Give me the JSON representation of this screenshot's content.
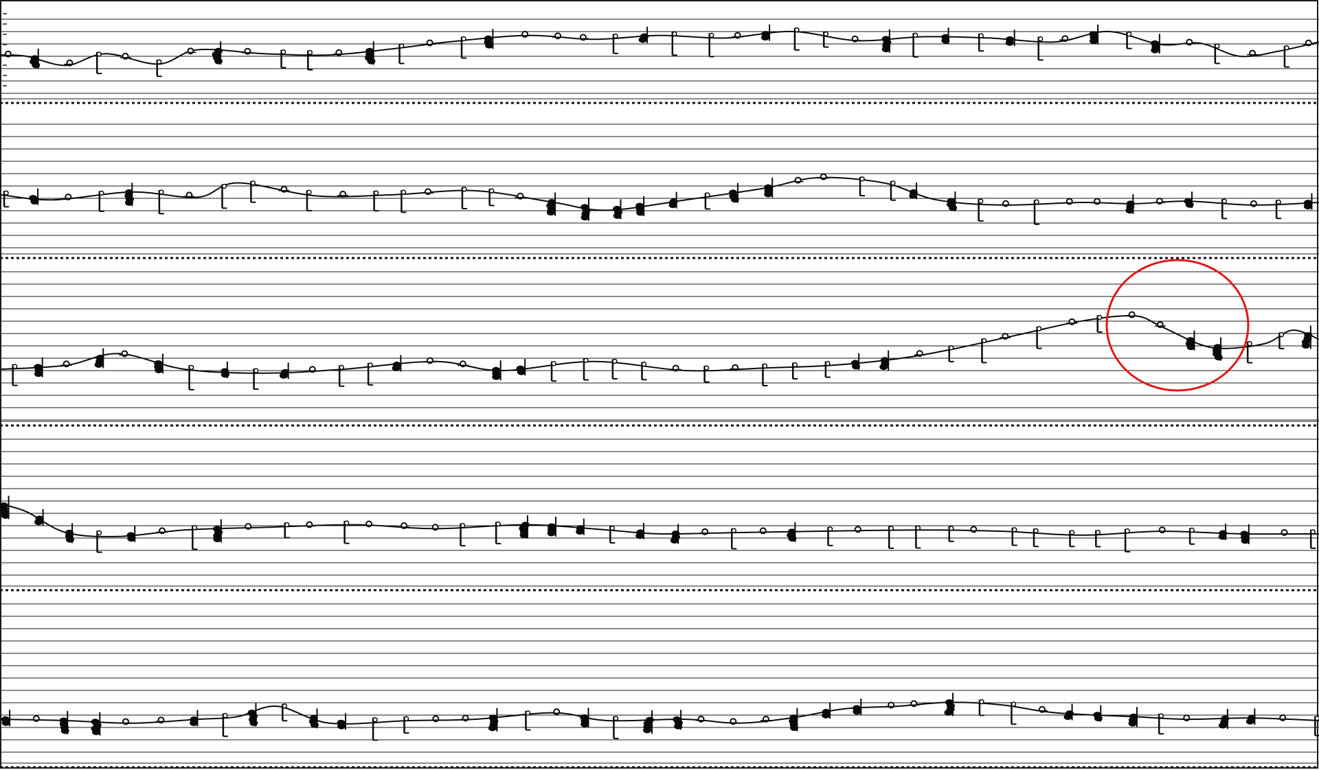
{
  "colors": {
    "background": "#ffffff",
    "staff_line": "#1a1a1a",
    "separator": "#111111",
    "notation": "#0a0a0a",
    "highlight_circle": "#e01818"
  },
  "icons": {
    "highlight": "red-ellipse-annotation",
    "notehead_filled": "filled-notehead-icon",
    "notehead_open": "open-notehead-icon"
  },
  "systems": [
    {
      "name": "system-1",
      "melody": [
        [
          0,
          0.05
        ],
        [
          0.02,
          0.0
        ],
        [
          0.05,
          -0.35
        ],
        [
          0.08,
          0.1
        ],
        [
          0.12,
          -0.3
        ],
        [
          0.15,
          0.25
        ],
        [
          0.2,
          0.1
        ],
        [
          0.25,
          0.05
        ],
        [
          0.3,
          0.3
        ],
        [
          0.34,
          0.55
        ],
        [
          0.4,
          0.8
        ],
        [
          0.45,
          0.65
        ],
        [
          0.5,
          0.8
        ],
        [
          0.55,
          0.7
        ],
        [
          0.6,
          0.95
        ],
        [
          0.65,
          0.6
        ],
        [
          0.7,
          0.75
        ],
        [
          0.75,
          0.7
        ],
        [
          0.8,
          0.55
        ],
        [
          0.84,
          0.95
        ],
        [
          0.88,
          0.45
        ],
        [
          0.91,
          0.5
        ],
        [
          0.94,
          0.0
        ],
        [
          0.97,
          0.2
        ],
        [
          1.0,
          0.55
        ]
      ]
    },
    {
      "name": "system-2",
      "melody": [
        [
          0,
          0.3
        ],
        [
          0.04,
          0.1
        ],
        [
          0.1,
          0.4
        ],
        [
          0.15,
          0.2
        ],
        [
          0.18,
          0.75
        ],
        [
          0.24,
          0.25
        ],
        [
          0.3,
          0.3
        ],
        [
          0.36,
          0.45
        ],
        [
          0.42,
          0.0
        ],
        [
          0.46,
          -0.3
        ],
        [
          0.52,
          0.1
        ],
        [
          0.58,
          0.55
        ],
        [
          0.62,
          0.95
        ],
        [
          0.67,
          0.75
        ],
        [
          0.71,
          0.1
        ],
        [
          0.76,
          -0.1
        ],
        [
          0.82,
          0.0
        ],
        [
          0.86,
          -0.05
        ],
        [
          0.9,
          0.05
        ],
        [
          0.95,
          -0.1
        ],
        [
          1.0,
          0.0
        ]
      ]
    },
    {
      "name": "system-3",
      "melody": [
        [
          0,
          0.05
        ],
        [
          0.05,
          0.2
        ],
        [
          0.09,
          0.65
        ],
        [
          0.14,
          0.05
        ],
        [
          0.2,
          -0.1
        ],
        [
          0.26,
          0.05
        ],
        [
          0.33,
          0.35
        ],
        [
          0.38,
          0.0
        ],
        [
          0.45,
          0.35
        ],
        [
          0.52,
          0.0
        ],
        [
          0.58,
          0.1
        ],
        [
          0.63,
          0.2
        ],
        [
          0.68,
          0.45
        ],
        [
          0.72,
          0.8
        ],
        [
          0.77,
          1.35
        ],
        [
          0.82,
          1.9
        ],
        [
          0.86,
          2.1
        ],
        [
          0.88,
          1.7
        ],
        [
          0.91,
          1.0
        ],
        [
          0.93,
          0.85
        ],
        [
          0.96,
          1.05
        ],
        [
          0.98,
          1.55
        ],
        [
          1.0,
          1.2
        ]
      ]
    },
    {
      "name": "system-4",
      "melody": [
        [
          0,
          1.1
        ],
        [
          0.02,
          0.8
        ],
        [
          0.05,
          0.0
        ],
        [
          0.09,
          -0.15
        ],
        [
          0.14,
          0.1
        ],
        [
          0.2,
          0.2
        ],
        [
          0.27,
          0.3
        ],
        [
          0.33,
          0.15
        ],
        [
          0.4,
          0.3
        ],
        [
          0.46,
          0.1
        ],
        [
          0.5,
          -0.05
        ],
        [
          0.56,
          0.0
        ],
        [
          0.62,
          0.05
        ],
        [
          0.7,
          0.1
        ],
        [
          0.76,
          0.05
        ],
        [
          0.82,
          -0.1
        ],
        [
          0.88,
          0.05
        ],
        [
          0.94,
          -0.05
        ],
        [
          1.0,
          -0.05
        ]
      ]
    },
    {
      "name": "system-5",
      "melody": [
        [
          0,
          0.05
        ],
        [
          0.05,
          0.0
        ],
        [
          0.1,
          -0.1
        ],
        [
          0.15,
          0.05
        ],
        [
          0.18,
          0.15
        ],
        [
          0.21,
          0.55
        ],
        [
          0.25,
          -0.1
        ],
        [
          0.31,
          0.0
        ],
        [
          0.36,
          0.05
        ],
        [
          0.42,
          0.3
        ],
        [
          0.46,
          0.0
        ],
        [
          0.52,
          0.05
        ],
        [
          0.56,
          -0.1
        ],
        [
          0.6,
          0.1
        ],
        [
          0.64,
          0.45
        ],
        [
          0.68,
          0.55
        ],
        [
          0.72,
          0.7
        ],
        [
          0.76,
          0.6
        ],
        [
          0.8,
          0.3
        ],
        [
          0.86,
          0.15
        ],
        [
          0.9,
          0.05
        ],
        [
          0.95,
          0.1
        ],
        [
          1.0,
          0.0
        ]
      ]
    }
  ]
}
